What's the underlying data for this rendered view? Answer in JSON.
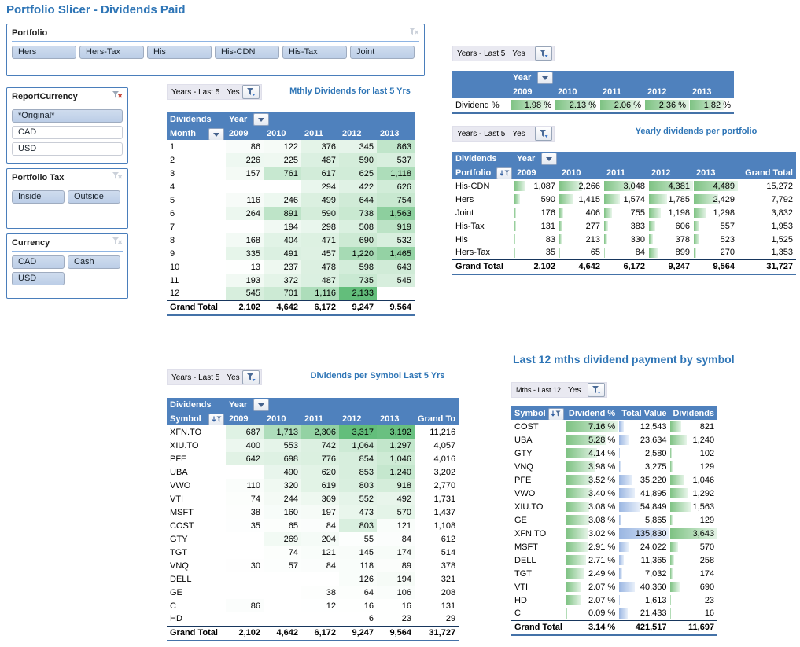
{
  "title": "Portfolio Slicer - Dividends Paid",
  "colors": {
    "header_blue": "#4F81BD",
    "title_blue": "#2E75B6",
    "scale_green_max": "#63BE7B",
    "bar_green": "#7EC283",
    "bar_blue": "#9AB6E2",
    "slicer_selected": "#C4D5EB",
    "filter_bar_bg": "#E9E9F1"
  },
  "icons": {
    "filter_applied": "funnel-icon",
    "clear_filter": "funnel-x-icon",
    "dropdown": "chevron-down-icon",
    "sort_filter": "funnel-sort-icon"
  },
  "filters": {
    "years": {
      "label": "Years - Last 5",
      "value": "Yes"
    },
    "months": {
      "label": "Mths - Last 12",
      "value": "Yes"
    }
  },
  "slicers": {
    "portfolio": {
      "title": "Portfolio",
      "filter_active": false,
      "buttons": [
        {
          "label": "Hers",
          "selected": true
        },
        {
          "label": "Hers-Tax",
          "selected": true
        },
        {
          "label": "His",
          "selected": true
        },
        {
          "label": "His-CDN",
          "selected": true
        },
        {
          "label": "His-Tax",
          "selected": true
        },
        {
          "label": "Joint",
          "selected": true
        }
      ]
    },
    "report_currency": {
      "title": "ReportCurrency",
      "filter_active": true,
      "buttons": [
        {
          "label": "*Original*",
          "selected": true
        },
        {
          "label": "CAD",
          "selected": false
        },
        {
          "label": "USD",
          "selected": false
        }
      ]
    },
    "portfolio_tax": {
      "title": "Portfolio Tax",
      "filter_active": false,
      "buttons": [
        {
          "label": "Inside",
          "selected": true
        },
        {
          "label": "Outside",
          "selected": true
        }
      ]
    },
    "currency": {
      "title": "Currency",
      "filter_active": false,
      "buttons": [
        {
          "label": "CAD",
          "selected": true
        },
        {
          "label": "Cash",
          "selected": true
        },
        {
          "label": "USD",
          "selected": true
        }
      ]
    }
  },
  "monthly": {
    "title": "Mthly Dividends for last 5 Yrs",
    "corner_label": "Dividends",
    "col_field": "Year",
    "row_field": "Month",
    "columns": [
      "2009",
      "2010",
      "2011",
      "2012",
      "2013"
    ],
    "rows": [
      {
        "label": "1",
        "values": [
          86,
          122,
          376,
          345,
          863
        ]
      },
      {
        "label": "2",
        "values": [
          226,
          225,
          487,
          590,
          537
        ]
      },
      {
        "label": "3",
        "values": [
          157,
          761,
          617,
          625,
          1118
        ]
      },
      {
        "label": "4",
        "values": [
          null,
          null,
          294,
          422,
          626
        ]
      },
      {
        "label": "5",
        "values": [
          116,
          246,
          499,
          644,
          754
        ]
      },
      {
        "label": "6",
        "values": [
          264,
          891,
          590,
          738,
          1563
        ]
      },
      {
        "label": "7",
        "values": [
          null,
          194,
          298,
          508,
          919
        ]
      },
      {
        "label": "8",
        "values": [
          168,
          404,
          471,
          690,
          532
        ]
      },
      {
        "label": "9",
        "values": [
          335,
          491,
          457,
          1220,
          1465
        ]
      },
      {
        "label": "10",
        "values": [
          13,
          237,
          478,
          598,
          643
        ]
      },
      {
        "label": "11",
        "values": [
          193,
          372,
          487,
          735,
          545
        ]
      },
      {
        "label": "12",
        "values": [
          545,
          701,
          1116,
          2133,
          null
        ]
      }
    ],
    "grand_total": {
      "label": "Grand Total",
      "values": [
        2102,
        4642,
        6172,
        9247,
        9564
      ]
    }
  },
  "dividend_pct": {
    "col_field": "Year",
    "columns": [
      "2009",
      "2010",
      "2011",
      "2012",
      "2013"
    ],
    "row_label": "Dividend %",
    "values": [
      1.98,
      2.13,
      2.06,
      2.36,
      1.82
    ]
  },
  "portfolio_table": {
    "title": "Yearly dividends per portfolio",
    "corner_label": "Dividends",
    "col_field": "Year",
    "row_field": "Portfolio",
    "columns": [
      "2009",
      "2010",
      "2011",
      "2012",
      "2013"
    ],
    "grand_col_label": "Grand Total",
    "rows": [
      {
        "label": "His-CDN",
        "values": [
          1087,
          2266,
          3048,
          4381,
          4489
        ],
        "total": 15272
      },
      {
        "label": "Hers",
        "values": [
          590,
          1415,
          1574,
          1785,
          2429
        ],
        "total": 7792
      },
      {
        "label": "Joint",
        "values": [
          176,
          406,
          755,
          1198,
          1298
        ],
        "total": 3832
      },
      {
        "label": "His-Tax",
        "values": [
          131,
          277,
          383,
          606,
          557
        ],
        "total": 1953
      },
      {
        "label": "His",
        "values": [
          83,
          213,
          330,
          378,
          523
        ],
        "total": 1525
      },
      {
        "label": "Hers-Tax",
        "values": [
          35,
          65,
          84,
          899,
          270
        ],
        "total": 1353
      }
    ],
    "grand_total": {
      "label": "Grand Total",
      "values": [
        2102,
        4642,
        6172,
        9247,
        9564
      ],
      "total": 31727
    }
  },
  "symbol_table": {
    "title": "Dividends per Symbol Last 5 Yrs",
    "corner_label": "Dividends",
    "col_field": "Year",
    "row_field": "Symbol",
    "columns": [
      "2009",
      "2010",
      "2011",
      "2012",
      "2013"
    ],
    "grand_col_label": "Grand To",
    "rows": [
      {
        "label": "XFN.TO",
        "values": [
          687,
          1713,
          2306,
          3317,
          3192
        ],
        "total": 11216
      },
      {
        "label": "XIU.TO",
        "values": [
          400,
          553,
          742,
          1064,
          1297
        ],
        "total": 4057
      },
      {
        "label": "PFE",
        "values": [
          642,
          698,
          776,
          854,
          1046
        ],
        "total": 4016
      },
      {
        "label": "UBA",
        "values": [
          null,
          490,
          620,
          853,
          1240
        ],
        "total": 3202
      },
      {
        "label": "VWO",
        "values": [
          110,
          320,
          619,
          803,
          918
        ],
        "total": 2770
      },
      {
        "label": "VTI",
        "values": [
          74,
          244,
          369,
          552,
          492
        ],
        "total": 1731
      },
      {
        "label": "MSFT",
        "values": [
          38,
          160,
          197,
          473,
          570
        ],
        "total": 1437
      },
      {
        "label": "COST",
        "values": [
          35,
          65,
          84,
          803,
          121
        ],
        "total": 1108
      },
      {
        "label": "GTY",
        "values": [
          null,
          269,
          204,
          55,
          84
        ],
        "total": 612
      },
      {
        "label": "TGT",
        "values": [
          null,
          74,
          121,
          145,
          174
        ],
        "total": 514
      },
      {
        "label": "VNQ",
        "values": [
          30,
          57,
          84,
          118,
          89
        ],
        "total": 378
      },
      {
        "label": "DELL",
        "values": [
          null,
          null,
          null,
          126,
          194
        ],
        "total": 321
      },
      {
        "label": "GE",
        "values": [
          null,
          null,
          38,
          64,
          106
        ],
        "total": 208
      },
      {
        "label": "C",
        "values": [
          86,
          null,
          12,
          16,
          16
        ],
        "total": 131
      },
      {
        "label": "HD",
        "values": [
          null,
          null,
          null,
          6,
          23
        ],
        "total": 29
      }
    ],
    "grand_total": {
      "label": "Grand Total",
      "values": [
        2102,
        4642,
        6172,
        9247,
        9564
      ],
      "total": 31727
    }
  },
  "last12_table": {
    "title": "Last 12 mths dividend payment by symbol",
    "headers": [
      "Symbol",
      "Dividend %",
      "Total Value",
      "Dividends"
    ],
    "rows": [
      {
        "symbol": "COST",
        "dividend_pct": 7.16,
        "total_value": 12543,
        "dividends": 821
      },
      {
        "symbol": "UBA",
        "dividend_pct": 5.28,
        "total_value": 23634,
        "dividends": 1240
      },
      {
        "symbol": "GTY",
        "dividend_pct": 4.14,
        "total_value": 2580,
        "dividends": 102
      },
      {
        "symbol": "VNQ",
        "dividend_pct": 3.98,
        "total_value": 3275,
        "dividends": 129
      },
      {
        "symbol": "PFE",
        "dividend_pct": 3.52,
        "total_value": 35220,
        "dividends": 1046
      },
      {
        "symbol": "VWO",
        "dividend_pct": 3.4,
        "total_value": 41895,
        "dividends": 1292
      },
      {
        "symbol": "XIU.TO",
        "dividend_pct": 3.08,
        "total_value": 54849,
        "dividends": 1563
      },
      {
        "symbol": "GE",
        "dividend_pct": 3.08,
        "total_value": 5865,
        "dividends": 129
      },
      {
        "symbol": "XFN.TO",
        "dividend_pct": 3.02,
        "total_value": 135830,
        "dividends": 3643
      },
      {
        "symbol": "MSFT",
        "dividend_pct": 2.91,
        "total_value": 24022,
        "dividends": 570
      },
      {
        "symbol": "DELL",
        "dividend_pct": 2.71,
        "total_value": 11365,
        "dividends": 258
      },
      {
        "symbol": "TGT",
        "dividend_pct": 2.49,
        "total_value": 7032,
        "dividends": 174
      },
      {
        "symbol": "VTI",
        "dividend_pct": 2.07,
        "total_value": 40360,
        "dividends": 690
      },
      {
        "symbol": "HD",
        "dividend_pct": 2.07,
        "total_value": 1613,
        "dividends": 23
      },
      {
        "symbol": "C",
        "dividend_pct": 0.09,
        "total_value": 21433,
        "dividends": 16
      }
    ],
    "grand_total": {
      "label": "Grand Total",
      "dividend_pct": 3.14,
      "total_value": 421517,
      "dividends": 11697
    }
  }
}
